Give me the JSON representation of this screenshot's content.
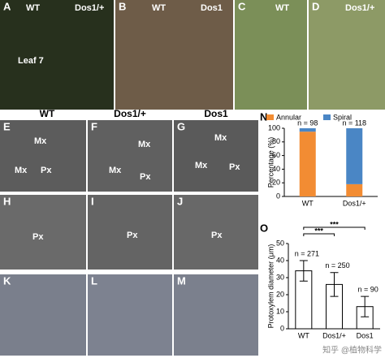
{
  "panels": [
    {
      "label": "A",
      "texts": [
        "WT",
        "Dos1/+",
        "Leaf 7"
      ]
    },
    {
      "label": "B",
      "texts": [
        "WT",
        "Dos1"
      ]
    },
    {
      "label": "C",
      "texts": [
        "WT"
      ]
    },
    {
      "label": "D",
      "texts": [
        "Dos1/+"
      ]
    },
    {
      "label": "E",
      "texts": [
        "Mx",
        "Mx",
        "Px"
      ]
    },
    {
      "label": "F",
      "texts": [
        "Mx",
        "Mx",
        "Px"
      ]
    },
    {
      "label": "G",
      "texts": [
        "Mx",
        "Mx",
        "Px"
      ]
    },
    {
      "label": "H",
      "texts": [
        "Px"
      ]
    },
    {
      "label": "I",
      "texts": [
        "Px"
      ]
    },
    {
      "label": "J",
      "texts": [
        "Px"
      ]
    },
    {
      "label": "K",
      "texts": []
    },
    {
      "label": "L",
      "texts": []
    },
    {
      "label": "M",
      "texts": []
    }
  ],
  "column_headers": [
    "WT",
    "Dos1/+",
    "Dos1"
  ],
  "watermark": "知乎 @植物科学",
  "chart_data": [
    {
      "type": "stacked_bar",
      "panel": "N",
      "ylabel": "Percentage (%)",
      "categories": [
        "WT",
        "Dos1/+"
      ],
      "series": [
        {
          "name": "Annular",
          "color": "#f28c33",
          "values": [
            95,
            18
          ]
        },
        {
          "name": "Spiral",
          "color": "#4a86c5",
          "values": [
            5,
            82
          ]
        }
      ],
      "annotations": [
        "n = 98",
        "n = 118"
      ],
      "ylim": [
        0,
        100
      ],
      "yticks": [
        0,
        20,
        40,
        60,
        80,
        100
      ]
    },
    {
      "type": "bar",
      "panel": "O",
      "ylabel": "Protoxylem diameter (μm)",
      "categories": [
        "WT",
        "Dos1/+",
        "Dos1"
      ],
      "values": [
        34,
        26,
        13
      ],
      "errors": [
        6,
        7,
        6
      ],
      "color": "#ffffff",
      "annotations": [
        "n = 271",
        "n = 250",
        "n = 90"
      ],
      "significance": [
        "***",
        "***"
      ],
      "ylim": [
        0,
        50
      ],
      "yticks": [
        0,
        10,
        20,
        30,
        40,
        50
      ]
    }
  ]
}
